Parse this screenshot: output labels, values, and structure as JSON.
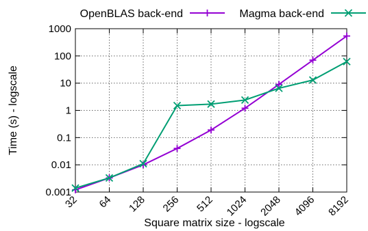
{
  "chart_data": {
    "type": "line",
    "xlabel": "Square matrix size - logscale",
    "ylabel": "Time (s) - logscale",
    "x_scale": "log2",
    "y_scale": "log10",
    "x": [
      32,
      64,
      128,
      256,
      512,
      1024,
      2048,
      4096,
      8192
    ],
    "x_tick_labels": [
      "32",
      "64",
      "128",
      "256",
      "512",
      "1024",
      "2048",
      "4096",
      "8192"
    ],
    "ylim": [
      0.001,
      1000
    ],
    "y_ticks": [
      0.001,
      0.01,
      0.1,
      1,
      10,
      100,
      1000
    ],
    "y_tick_labels": [
      "0.001",
      "0.01",
      "0.1",
      "1",
      "10",
      "100",
      "1000"
    ],
    "grid": true,
    "legend_position": "top",
    "series": [
      {
        "name": "OpenBLAS back-end",
        "color": "#9400d3",
        "marker": "plus",
        "values": [
          0.0012,
          0.0033,
          0.01,
          0.04,
          0.19,
          1.2,
          9.0,
          70,
          540
        ]
      },
      {
        "name": "Magma back-end",
        "color": "#009e73",
        "marker": "cross",
        "values": [
          0.0014,
          0.0033,
          0.011,
          1.5,
          1.7,
          2.4,
          6.5,
          13,
          62
        ]
      }
    ]
  }
}
